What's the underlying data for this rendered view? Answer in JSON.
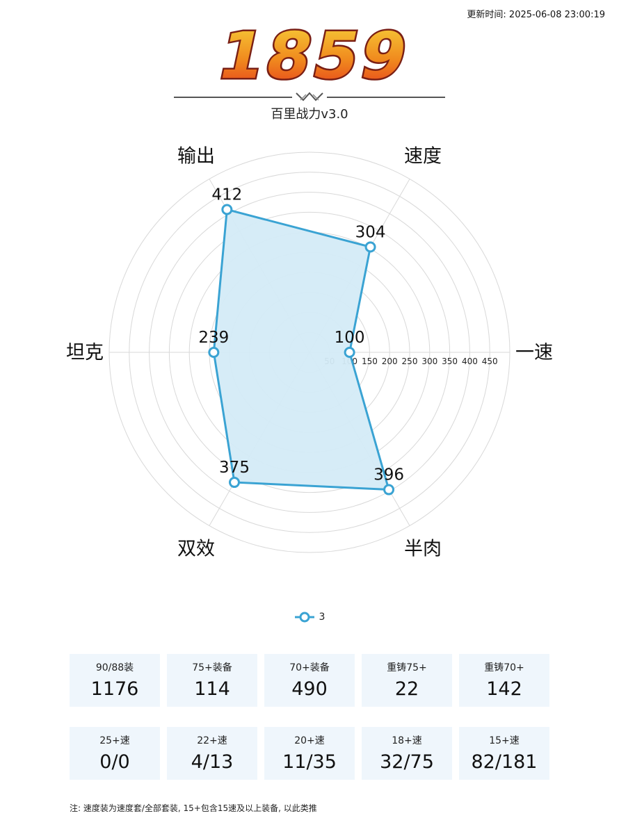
{
  "header": {
    "updated": "更新时间: 2025-06-08 23:00:19",
    "score": "1859",
    "subtitle": "百里战力v3.0"
  },
  "colors": {
    "series": "#3aa3d3",
    "fill": "#d4ebf7",
    "grid": "#d8d8d8",
    "card_bg": "#eff6fc",
    "score_gradient": [
      "#f7d23a",
      "#f08a1e",
      "#e53a1b"
    ],
    "score_outline": "#7a1f14"
  },
  "chart_data": {
    "type": "radar",
    "indicators": [
      "一速",
      "速度",
      "输出",
      "坦克",
      "双效",
      "半肉"
    ],
    "rings": [
      50,
      100,
      150,
      200,
      250,
      300,
      350,
      400,
      450
    ],
    "max": 500,
    "series": [
      {
        "name": "3",
        "values": [
          100,
          304,
          412,
          239,
          375,
          396
        ]
      }
    ],
    "legend_position": "bottom-center",
    "grid": true
  },
  "stats": {
    "row1": [
      {
        "label": "90/88装",
        "value": "1176"
      },
      {
        "label": "75+装备",
        "value": "114"
      },
      {
        "label": "70+装备",
        "value": "490"
      },
      {
        "label": "重铸75+",
        "value": "22"
      },
      {
        "label": "重铸70+",
        "value": "142"
      }
    ],
    "row2": [
      {
        "label": "25+速",
        "value": "0/0"
      },
      {
        "label": "22+速",
        "value": "4/13"
      },
      {
        "label": "20+速",
        "value": "11/35"
      },
      {
        "label": "18+速",
        "value": "32/75"
      },
      {
        "label": "15+速",
        "value": "82/181"
      }
    ]
  },
  "note": "注: 速度装为速度套/全部套装, 15+包含15速及以上装备, 以此类推"
}
